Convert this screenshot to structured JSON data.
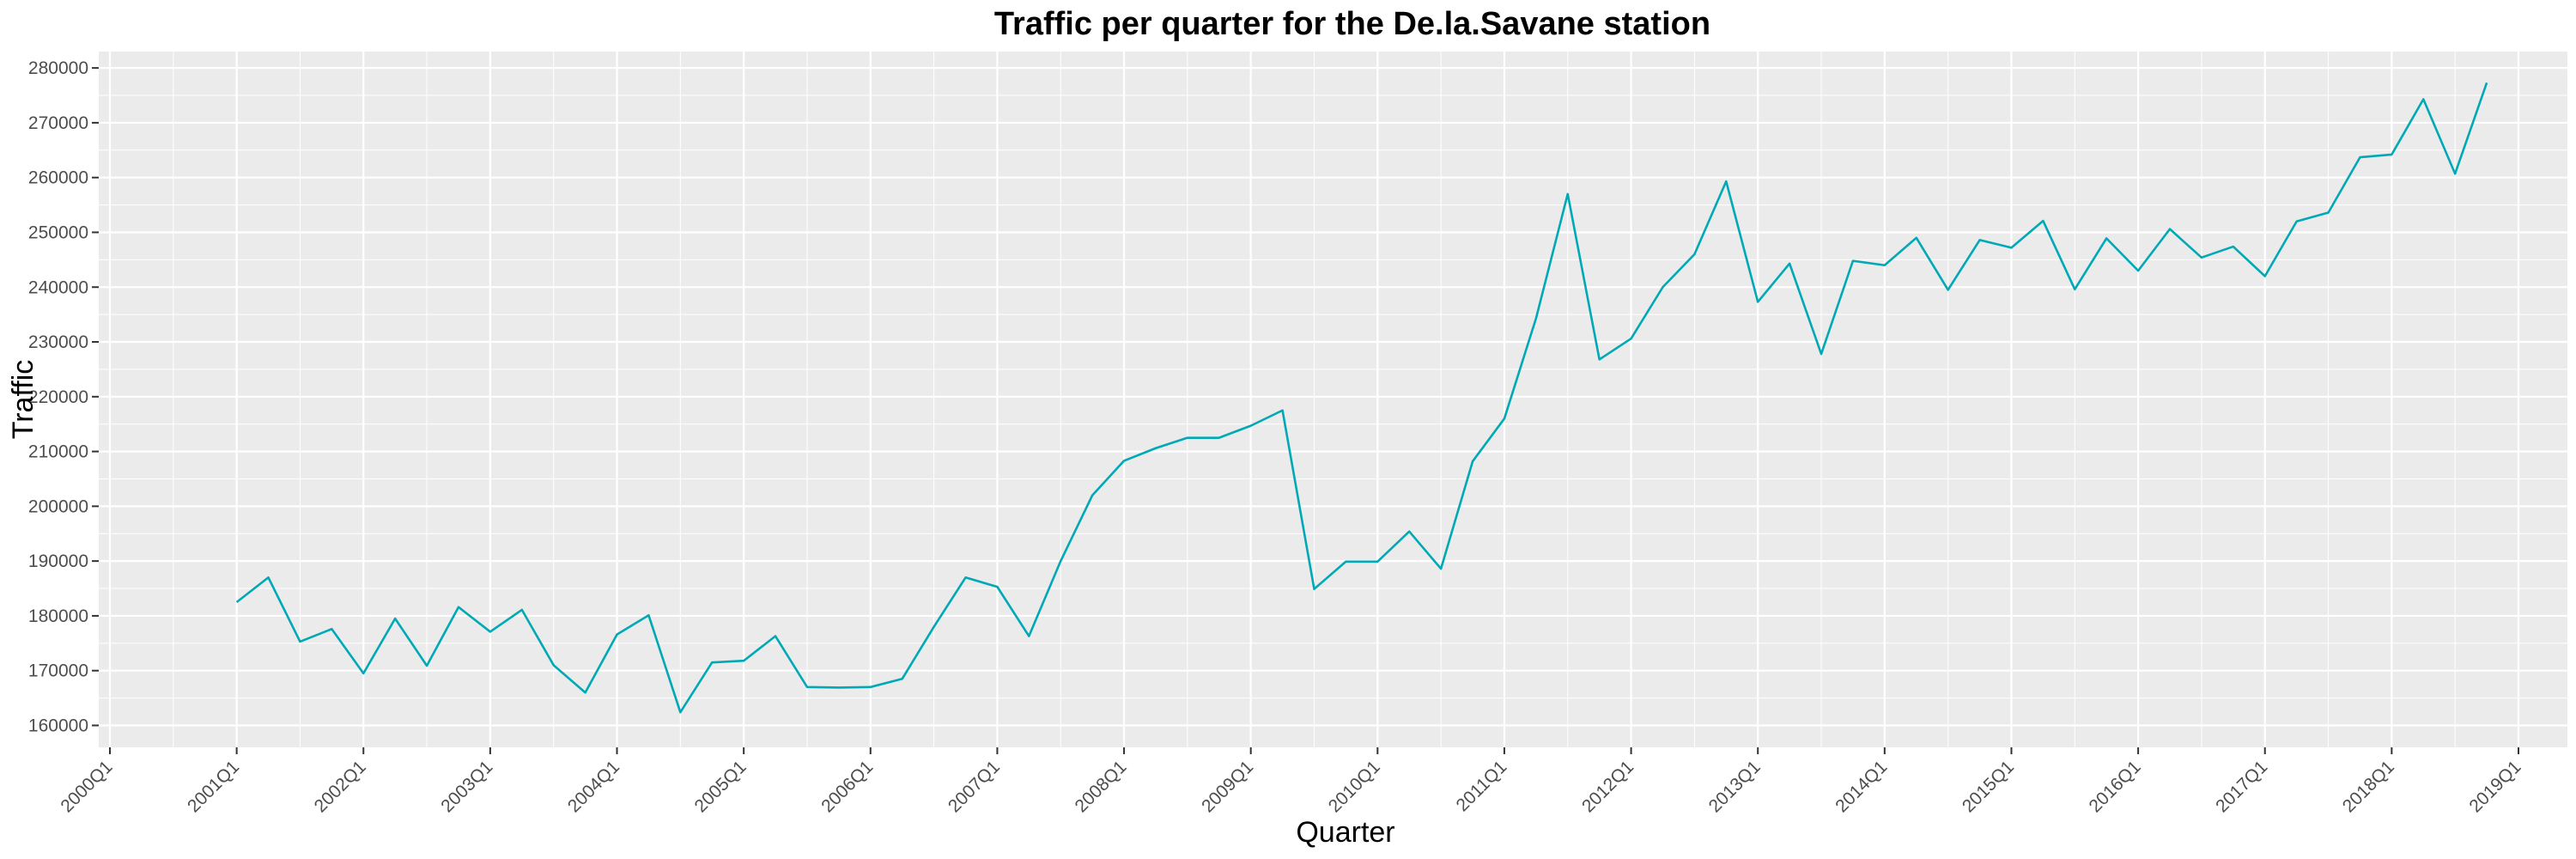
{
  "chart_data": {
    "type": "line",
    "title": "Traffic per quarter for the De.la.Savane station",
    "xlabel": "Quarter",
    "ylabel": "Traffic",
    "x_tick_labels": [
      "2000Q1",
      "2001Q1",
      "2002Q1",
      "2003Q1",
      "2004Q1",
      "2005Q1",
      "2006Q1",
      "2007Q1",
      "2008Q1",
      "2009Q1",
      "2010Q1",
      "2011Q1",
      "2012Q1",
      "2013Q1",
      "2014Q1",
      "2015Q1",
      "2016Q1",
      "2017Q1",
      "2018Q1",
      "2019Q1"
    ],
    "y_tick_labels": [
      "160000",
      "170000",
      "180000",
      "190000",
      "200000",
      "210000",
      "220000",
      "230000",
      "240000",
      "250000",
      "260000",
      "270000",
      "280000"
    ],
    "ylim": [
      156000,
      283000
    ],
    "grid": true,
    "legend": "none",
    "line_color": "#00A9B5",
    "background_color": "#EBEBEB",
    "series": [
      {
        "x": [
          "2001Q1",
          "2001Q2",
          "2001Q3",
          "2001Q4",
          "2002Q1",
          "2002Q2",
          "2002Q3",
          "2002Q4",
          "2003Q1",
          "2003Q2",
          "2003Q3",
          "2003Q4",
          "2004Q1",
          "2004Q2",
          "2004Q3",
          "2004Q4",
          "2005Q1",
          "2005Q2",
          "2005Q3",
          "2005Q4",
          "2006Q1",
          "2006Q2",
          "2006Q3",
          "2006Q4",
          "2007Q1",
          "2007Q2",
          "2007Q3",
          "2007Q4",
          "2008Q1",
          "2008Q2",
          "2008Q3",
          "2008Q4",
          "2009Q1",
          "2009Q2",
          "2009Q3",
          "2009Q4",
          "2010Q1",
          "2010Q2",
          "2010Q3",
          "2010Q4",
          "2011Q1",
          "2011Q2",
          "2011Q3",
          "2011Q4",
          "2012Q1",
          "2012Q2",
          "2012Q3",
          "2012Q4",
          "2013Q1",
          "2013Q2",
          "2013Q3",
          "2013Q4",
          "2014Q1",
          "2014Q2",
          "2014Q3",
          "2014Q4",
          "2015Q1",
          "2015Q2",
          "2015Q3",
          "2015Q4",
          "2016Q1",
          "2016Q2",
          "2016Q3",
          "2016Q4",
          "2017Q1",
          "2017Q2",
          "2017Q3",
          "2017Q4",
          "2018Q1",
          "2018Q2",
          "2018Q3",
          "2018Q4"
        ],
        "values": [
          182500,
          187000,
          175300,
          177600,
          169500,
          179500,
          170900,
          181600,
          177100,
          181100,
          171000,
          166000,
          176600,
          180100,
          162400,
          171500,
          171800,
          176300,
          167000,
          166900,
          167000,
          168500,
          178000,
          187000,
          185300,
          176300,
          190000,
          202000,
          208300,
          210600,
          212500,
          212500,
          214700,
          217500,
          184900,
          189900,
          189900,
          195400,
          188600,
          208200,
          216000,
          234300,
          257000,
          226800,
          230600,
          240000,
          246000,
          259300,
          237300,
          244300,
          227800,
          244800,
          244000,
          249000,
          239500,
          248600,
          247200,
          252100,
          239600,
          248900,
          243000,
          250600,
          245400,
          247400,
          242000,
          252000,
          253600,
          263700,
          264200,
          274300,
          260700,
          277300
        ]
      }
    ]
  }
}
